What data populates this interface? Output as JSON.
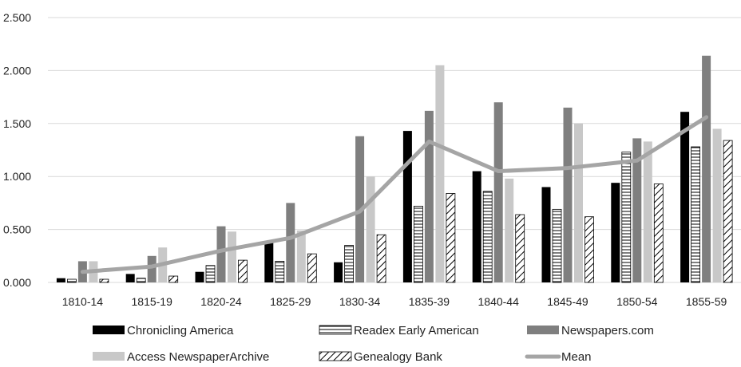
{
  "chart_data": {
    "type": "bar",
    "categories": [
      "1810-14",
      "1815-19",
      "1820-24",
      "1825-29",
      "1830-34",
      "1835-39",
      "1840-44",
      "1845-49",
      "1850-54",
      "1855-59"
    ],
    "series": [
      {
        "name": "Chronicling America",
        "kind": "bar",
        "pattern": "solid-black",
        "values": [
          0.04,
          0.08,
          0.1,
          0.38,
          0.19,
          1.43,
          1.05,
          0.9,
          0.94,
          1.61
        ]
      },
      {
        "name": "Readex Early American",
        "kind": "bar",
        "pattern": "horizontal-hatch",
        "values": [
          0.03,
          0.04,
          0.16,
          0.2,
          0.35,
          0.72,
          0.86,
          0.69,
          1.23,
          1.28
        ]
      },
      {
        "name": "Newspapers.com",
        "kind": "bar",
        "pattern": "solid-dark-gray",
        "values": [
          0.2,
          0.25,
          0.53,
          0.75,
          1.38,
          1.62,
          1.7,
          1.65,
          1.36,
          2.14
        ]
      },
      {
        "name": "Access NewspaperArchive",
        "kind": "bar",
        "pattern": "solid-light-gray",
        "values": [
          0.2,
          0.33,
          0.48,
          0.49,
          1.0,
          2.05,
          0.98,
          1.5,
          1.33,
          1.45
        ]
      },
      {
        "name": "Genealogy Bank",
        "kind": "bar",
        "pattern": "diagonal-hatch",
        "values": [
          0.03,
          0.06,
          0.21,
          0.27,
          0.45,
          0.84,
          0.64,
          0.62,
          0.93,
          1.34
        ]
      },
      {
        "name": "Mean",
        "kind": "line",
        "values": [
          0.1,
          0.15,
          0.3,
          0.42,
          0.67,
          1.33,
          1.05,
          1.08,
          1.15,
          1.56
        ]
      }
    ],
    "yticks": [
      "0.000",
      "0.500",
      "1.000",
      "1.500",
      "2.000",
      "2.500"
    ],
    "ylim": [
      0,
      2.5
    ],
    "grid": true,
    "legend_position": "bottom",
    "colors": {
      "chronicling": "#000000",
      "newspapers": "#7f7f7f",
      "access": "#c8c8c8",
      "hatch": "#000000",
      "mean": "#a5a5a5",
      "grid": "#d9d9d9"
    }
  }
}
